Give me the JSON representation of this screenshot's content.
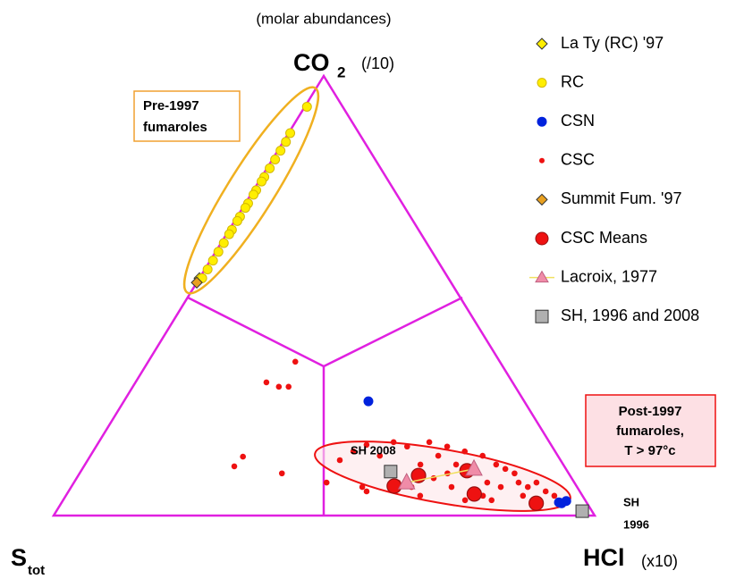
{
  "chart_data": {
    "type": "ternary",
    "scale_note": "(molar abundances)",
    "vertices": {
      "top": {
        "main": "CO",
        "sub": "2",
        "note": "(/10)"
      },
      "left": {
        "main": "S",
        "sub": "tot"
      },
      "right": {
        "main": "HCl",
        "note": "(x10)"
      }
    },
    "annotations": {
      "pre": [
        "Pre-1997",
        "fumaroles"
      ],
      "post": [
        "Post-1997",
        "fumaroles,",
        "T > 97°c"
      ],
      "sh2008": "SH 2008",
      "sh1996": [
        "SH",
        "1996"
      ]
    },
    "series": [
      {
        "name": "La Ty (RC) '97",
        "marker": "diamond",
        "color": "#ffee00",
        "edge": "#333333",
        "co2": [
          0.54
        ],
        "hcl": [
          0.0
        ]
      },
      {
        "name": "RC",
        "marker": "circle",
        "color": "#ffee00",
        "edge": "#d4b800",
        "co2": [
          0.93,
          0.87,
          0.85,
          0.83,
          0.81,
          0.79,
          0.77,
          0.76,
          0.74,
          0.73,
          0.71,
          0.7,
          0.68,
          0.67,
          0.65,
          0.64,
          0.62,
          0.6,
          0.58,
          0.56,
          0.54
        ],
        "hcl": [
          0.004,
          0.003,
          0.005,
          0.005,
          0.005,
          0.005,
          0.005,
          0.005,
          0.005,
          0.005,
          0.005,
          0.005,
          0.005,
          0.005,
          0.005,
          0.005,
          0.005,
          0.005,
          0.005,
          0.005,
          0.005
        ]
      },
      {
        "name": "CSN",
        "marker": "circle",
        "color": "#0022dd",
        "co2": [
          0.26,
          0.03,
          0.033,
          0.028
        ],
        "hcl": [
          0.452,
          0.919,
          0.931,
          0.925
        ]
      },
      {
        "name": "CSC",
        "marker": "dot",
        "color": "#ee1111",
        "co2": [
          0.35,
          0.303,
          0.293,
          0.293,
          0.134,
          0.112,
          0.096,
          0.075,
          0.065,
          0.126,
          0.146,
          0.161,
          0.136,
          0.167,
          0.157,
          0.116,
          0.167,
          0.136,
          0.157,
          0.116,
          0.146,
          0.136,
          0.116,
          0.106,
          0.096,
          0.075,
          0.065,
          0.075,
          0.065,
          0.075,
          0.055,
          0.065,
          0.035,
          0.045,
          0.035,
          0.045,
          0.065,
          0.075,
          0.055,
          0.096,
          0.085,
          0.045,
          0.045
        ],
        "hcl": [
          0.272,
          0.242,
          0.27,
          0.288,
          0.283,
          0.278,
          0.374,
          0.467,
          0.538,
          0.466,
          0.481,
          0.498,
          0.535,
          0.545,
          0.575,
          0.62,
          0.611,
          0.643,
          0.649,
          0.686,
          0.687,
          0.725,
          0.76,
          0.782,
          0.804,
          0.822,
          0.794,
          0.764,
          0.844,
          0.855,
          0.882,
          0.703,
          0.743,
          0.771,
          0.792,
          0.655,
          0.629,
          0.599,
          0.551,
          0.68,
          0.66,
          0.903,
          0.845
        ]
      },
      {
        "name": "Summit Fum. '97",
        "marker": "diamond",
        "color": "#e8a020",
        "edge": "#333333",
        "co2": [
          0.53
        ],
        "hcl": [
          0.0
        ]
      },
      {
        "name": "CSC Means",
        "marker": "big",
        "color": "#ee1111",
        "edge": "#991111",
        "co2": [
          0.091,
          0.067,
          0.102,
          0.049,
          0.028
        ],
        "hcl": [
          0.629,
          0.596,
          0.713,
          0.753,
          0.878
        ]
      },
      {
        "name": "Lacroix, 1977",
        "marker": "triangle",
        "color": "#f08ca8",
        "edge": "#c06080",
        "line": "#f0e060",
        "co2": [
          0.075,
          0.106
        ],
        "hcl": [
          0.615,
          0.724
        ]
      },
      {
        "name": "SH, 1996 and 2008",
        "marker": "square",
        "color": "#b0b0b0",
        "edge": "#333333",
        "co2": [
          0.1,
          0.01
        ],
        "hcl": [
          0.573,
          0.972
        ]
      }
    ]
  }
}
